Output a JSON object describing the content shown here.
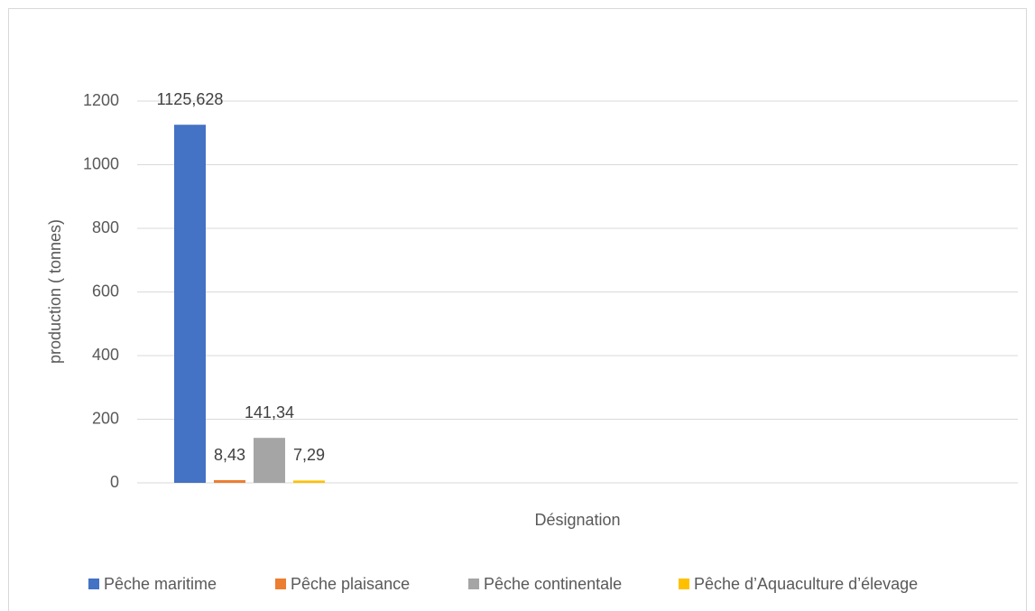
{
  "chart_data": {
    "type": "bar",
    "xlabel": "Désignation",
    "ylabel": "production ( tonnes)",
    "categories": [
      null
    ],
    "series": [
      {
        "name": "Pêche maritime",
        "color": "#4472c4",
        "values": [
          1125.628
        ],
        "value_labels": [
          "1125,628"
        ]
      },
      {
        "name": "Pêche plaisance",
        "color": "#ed7d31",
        "values": [
          8.43
        ],
        "value_labels": [
          "8,43"
        ]
      },
      {
        "name": "Pêche continentale",
        "color": "#a5a5a5",
        "values": [
          141.34
        ],
        "value_labels": [
          "141,34"
        ]
      },
      {
        "name": "Pêche d’Aquaculture d’élevage",
        "color": "#ffc000",
        "values": [
          7.29
        ],
        "value_labels": [
          "7,29"
        ]
      }
    ],
    "ylim": [
      0,
      1200
    ],
    "yticks": [
      0,
      200,
      400,
      600,
      800,
      1000,
      1200
    ],
    "grid": true,
    "legend": "bottom"
  }
}
